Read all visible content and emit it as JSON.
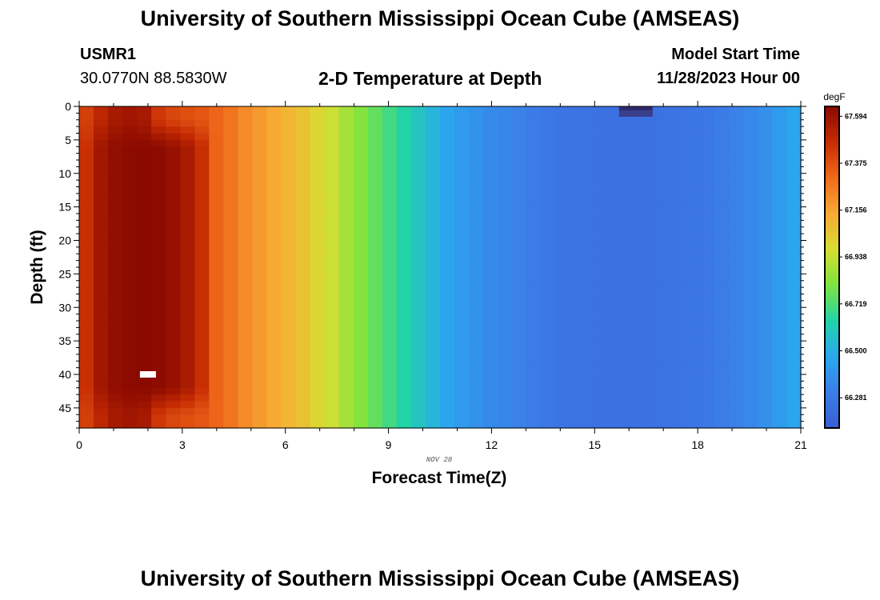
{
  "page": {
    "title_top": "University of Southern Mississippi Ocean Cube (AMSEAS)",
    "title_bottom": "University of Southern Mississippi Ocean Cube (AMSEAS)",
    "station_id": "USMR1",
    "station_coords": "30.0770N  88.5830W",
    "plot_title": "2-D Temperature at Depth",
    "model_start_label": "Model Start Time",
    "model_start_value": "11/28/2023 Hour 00",
    "date_label": "NOV 28"
  },
  "colors": {
    "c0": "#8b0a00",
    "c1": "#c62c03",
    "c2": "#f06a1a",
    "c3": "#f7a934",
    "c4": "#d8de32",
    "c5": "#7ee340",
    "c6": "#22d3a8",
    "c7": "#2aa9ee",
    "c8": "#3b7de8",
    "c9": "#3a5fd6",
    "c10": "#2d2a6e"
  },
  "chart_data": {
    "type": "heatmap",
    "title": "2-D Temperature at Depth",
    "xlabel": "Forecast Time(Z)",
    "ylabel": "Depth (ft)",
    "x_ticks": [
      0,
      3,
      6,
      9,
      12,
      15,
      18,
      21
    ],
    "y_ticks": [
      0,
      5,
      10,
      15,
      20,
      25,
      30,
      35,
      40,
      45
    ],
    "xlim": [
      0,
      21
    ],
    "ylim": [
      0,
      48
    ],
    "colorbar": {
      "unit": "degF",
      "min": 66.14,
      "max": 67.64,
      "ticks": [
        67.594,
        67.375,
        67.156,
        66.938,
        66.719,
        66.5,
        66.281
      ]
    },
    "column_temps_degF": [
      67.42,
      67.5,
      67.56,
      67.58,
      67.56,
      67.44,
      67.4,
      67.38,
      67.36,
      67.32,
      67.28,
      67.22,
      67.18,
      67.14,
      67.1,
      67.06,
      67.0,
      66.95,
      66.88,
      66.82,
      66.76,
      66.7,
      66.64,
      66.58,
      66.52,
      66.46,
      66.42,
      66.39,
      66.36,
      66.34,
      66.32,
      66.3,
      66.28,
      66.26,
      66.25,
      66.25,
      66.24,
      66.24,
      66.24,
      66.24,
      66.25,
      66.26,
      66.27,
      66.28,
      66.3,
      66.32,
      66.35,
      66.38,
      66.42,
      66.46
    ],
    "warm_core": {
      "x_center": 2.0,
      "x_halfwidth": 2.0,
      "depth_start": 2,
      "depth_end": 46,
      "peak_degF": 67.64
    },
    "annotations": [
      {
        "type": "marker",
        "x": 2.0,
        "depth": 40,
        "label": "white box"
      },
      {
        "type": "marker",
        "x": 16.2,
        "depth": 0.5,
        "label": "dark cell"
      }
    ]
  }
}
